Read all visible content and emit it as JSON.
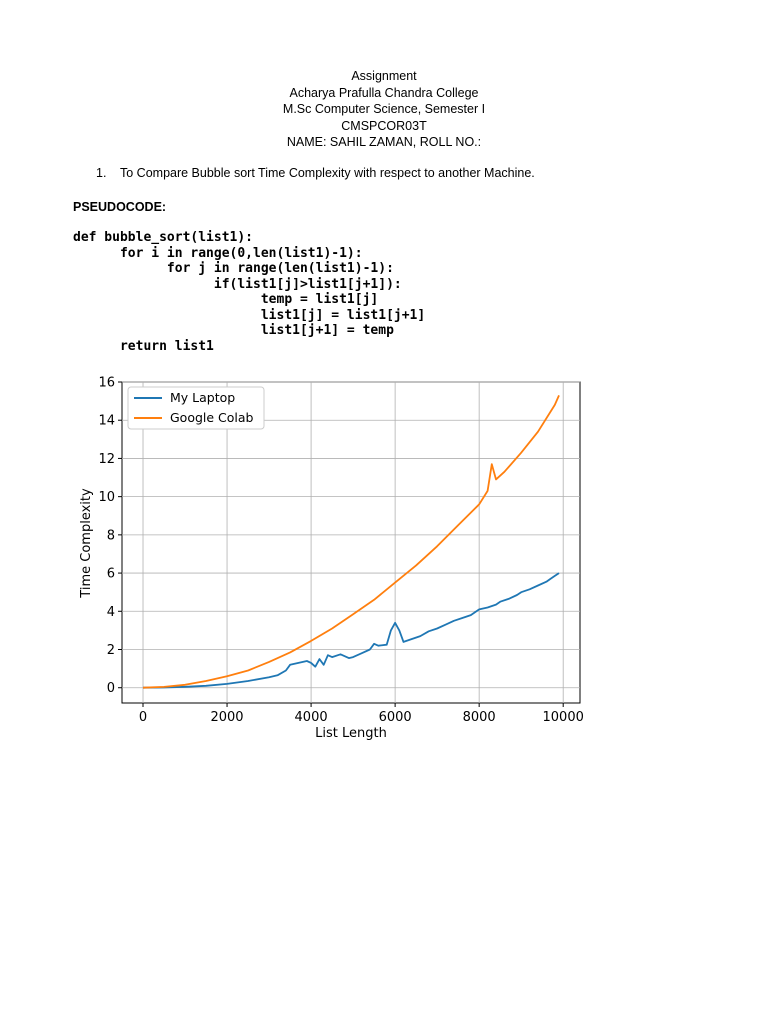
{
  "header": {
    "line1": "Assignment",
    "line2": "Acharya Prafulla Chandra College",
    "line3": "M.Sc Computer Science, Semester I",
    "line4": "CMSPCOR03T",
    "line5": "NAME: SAHIL ZAMAN, ROLL NO.:"
  },
  "task": {
    "number": "1.",
    "text": "To Compare Bubble sort Time Complexity with respect to another Machine."
  },
  "pseudocode_label": "PSEUDOCODE:",
  "code": [
    "def bubble_sort(list1):",
    "      for i in range(0,len(list1)-1):",
    "            for j in range(len(list1)-1):",
    "                  if(list1[j]>list1[j+1]):",
    "                        temp = list1[j]",
    "                        list1[j] = list1[j+1]",
    "                        list1[j+1] = temp",
    "      return list1"
  ],
  "chart_data": {
    "type": "line",
    "xlabel": "List Length",
    "ylabel": "Time Complexity",
    "xlim": [
      -500,
      10400
    ],
    "ylim": [
      -0.8,
      16
    ],
    "xticks": [
      0,
      2000,
      4000,
      6000,
      8000,
      10000
    ],
    "yticks": [
      0,
      2,
      4,
      6,
      8,
      10,
      12,
      14,
      16
    ],
    "grid": true,
    "legend_position": "top-left",
    "series": [
      {
        "name": "My Laptop",
        "color": "#1f77b4",
        "points": [
          [
            0,
            0
          ],
          [
            500,
            0.01
          ],
          [
            1000,
            0.05
          ],
          [
            1500,
            0.1
          ],
          [
            2000,
            0.2
          ],
          [
            2500,
            0.35
          ],
          [
            3000,
            0.55
          ],
          [
            3200,
            0.65
          ],
          [
            3400,
            0.9
          ],
          [
            3500,
            1.2
          ],
          [
            3700,
            1.3
          ],
          [
            3900,
            1.4
          ],
          [
            4000,
            1.3
          ],
          [
            4100,
            1.1
          ],
          [
            4200,
            1.5
          ],
          [
            4300,
            1.2
          ],
          [
            4400,
            1.7
          ],
          [
            4500,
            1.6
          ],
          [
            4700,
            1.75
          ],
          [
            4900,
            1.55
          ],
          [
            5000,
            1.6
          ],
          [
            5200,
            1.8
          ],
          [
            5400,
            2.0
          ],
          [
            5500,
            2.3
          ],
          [
            5600,
            2.2
          ],
          [
            5800,
            2.25
          ],
          [
            5900,
            3.0
          ],
          [
            6000,
            3.4
          ],
          [
            6100,
            3.0
          ],
          [
            6200,
            2.4
          ],
          [
            6400,
            2.55
          ],
          [
            6600,
            2.7
          ],
          [
            6800,
            2.95
          ],
          [
            7000,
            3.1
          ],
          [
            7200,
            3.3
          ],
          [
            7400,
            3.5
          ],
          [
            7600,
            3.65
          ],
          [
            7800,
            3.8
          ],
          [
            7900,
            3.95
          ],
          [
            8000,
            4.1
          ],
          [
            8200,
            4.2
          ],
          [
            8400,
            4.35
          ],
          [
            8500,
            4.5
          ],
          [
            8700,
            4.65
          ],
          [
            8900,
            4.85
          ],
          [
            9000,
            5.0
          ],
          [
            9200,
            5.15
          ],
          [
            9400,
            5.35
          ],
          [
            9600,
            5.55
          ],
          [
            9700,
            5.7
          ],
          [
            9800,
            5.85
          ],
          [
            9900,
            6.0
          ]
        ]
      },
      {
        "name": "Google Colab",
        "color": "#ff7f0e",
        "points": [
          [
            0,
            0
          ],
          [
            500,
            0.04
          ],
          [
            1000,
            0.15
          ],
          [
            1500,
            0.35
          ],
          [
            2000,
            0.6
          ],
          [
            2500,
            0.9
          ],
          [
            3000,
            1.35
          ],
          [
            3500,
            1.85
          ],
          [
            4000,
            2.45
          ],
          [
            4500,
            3.1
          ],
          [
            5000,
            3.85
          ],
          [
            5500,
            4.6
          ],
          [
            6000,
            5.5
          ],
          [
            6500,
            6.4
          ],
          [
            7000,
            7.4
          ],
          [
            7500,
            8.5
          ],
          [
            8000,
            9.6
          ],
          [
            8200,
            10.3
          ],
          [
            8300,
            11.7
          ],
          [
            8400,
            10.9
          ],
          [
            8600,
            11.3
          ],
          [
            9000,
            12.3
          ],
          [
            9400,
            13.4
          ],
          [
            9800,
            14.8
          ],
          [
            9900,
            15.3
          ]
        ]
      }
    ]
  }
}
